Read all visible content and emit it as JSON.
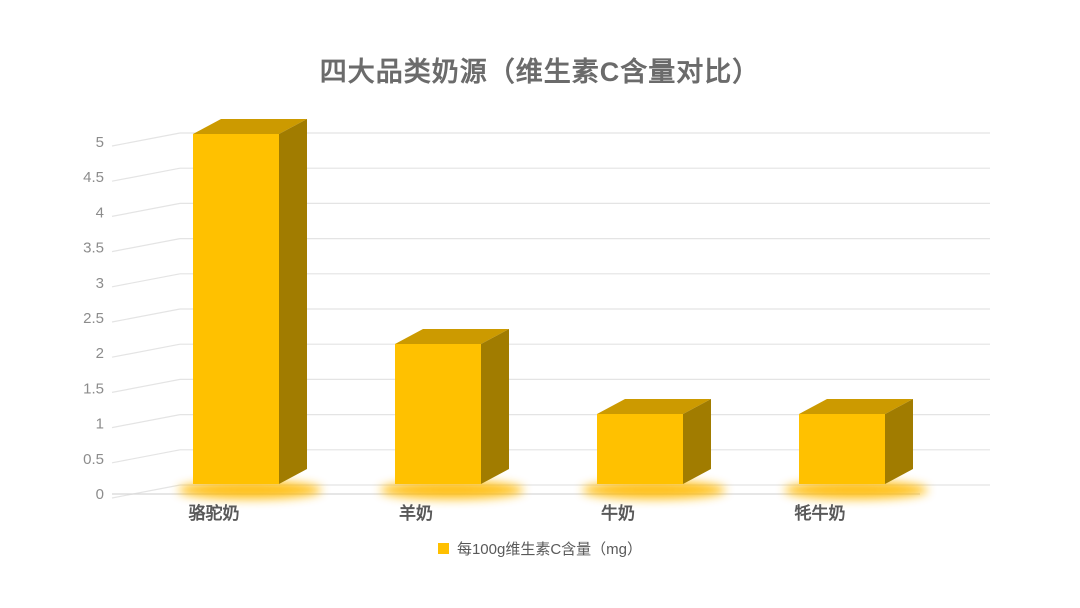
{
  "title": "四大品类奶源（维生素C含量对比）",
  "legend": {
    "label": "每100g维生素C含量（mg）",
    "swatch_color": "#FFC000"
  },
  "chart_data": {
    "type": "bar",
    "variant": "3d-column",
    "title": "四大品类奶源（维生素C含量对比）",
    "categories": [
      "骆驼奶",
      "羊奶",
      "牛奶",
      "牦牛奶"
    ],
    "series": [
      {
        "name": "每100g维生素C含量（mg）",
        "values": [
          5,
          2,
          1,
          1
        ]
      }
    ],
    "xlabel": "",
    "ylabel": "",
    "ylim": [
      0,
      5
    ],
    "ytick_step": 0.5,
    "yticks": [
      0,
      0.5,
      1,
      1.5,
      2,
      2.5,
      3,
      3.5,
      4,
      4.5,
      5
    ],
    "grid": true,
    "legend_position": "bottom",
    "colors": {
      "bar_front": "#FFC100",
      "bar_top": "#CC9A00",
      "bar_side": "#A17C00",
      "glow": "#FFB900",
      "gridline": "#E4E4E4",
      "axis_line": "#D8D8D8",
      "title_text": "#6B6B6B",
      "tick_text": "#8C8C8C",
      "category_text": "#595959"
    }
  }
}
